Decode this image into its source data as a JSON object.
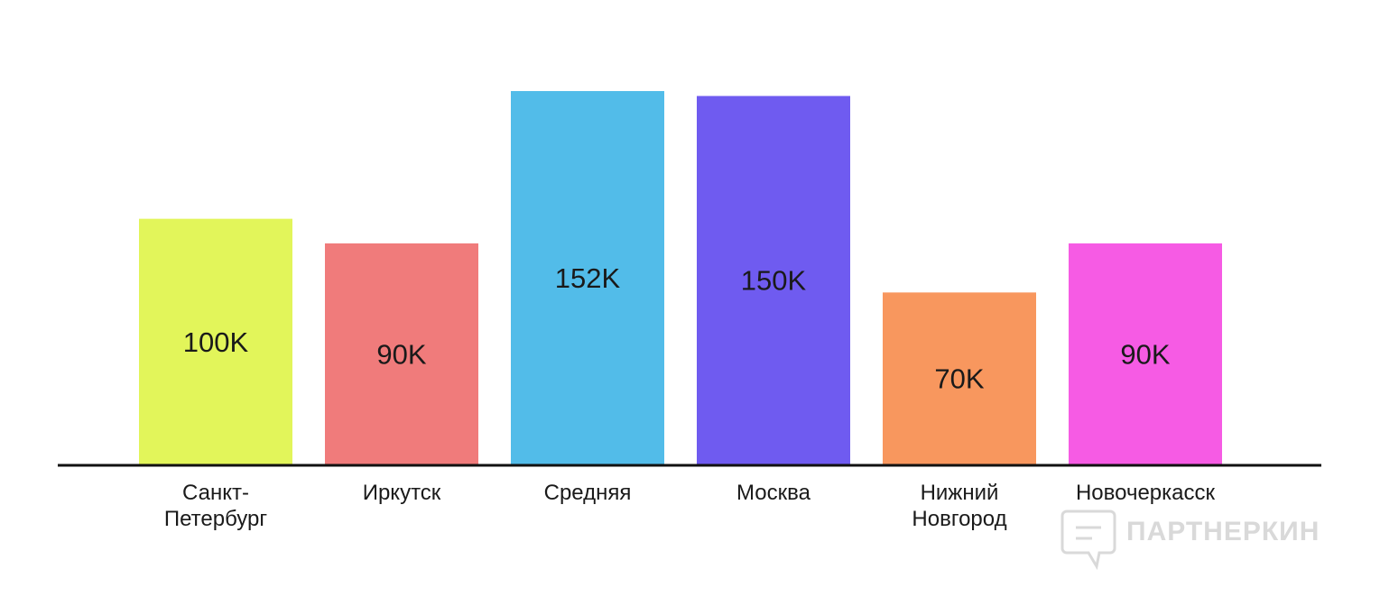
{
  "chart_data": {
    "type": "bar",
    "title": "",
    "xlabel": "",
    "ylabel": "",
    "ylim": [
      0,
      152
    ],
    "grid": false,
    "legend": "none",
    "categories": [
      [
        "Санкт-",
        "Петербург"
      ],
      [
        "Иркутск"
      ],
      [
        "Средняя"
      ],
      [
        "Москва"
      ],
      [
        "Нижний",
        "Новгород"
      ],
      [
        "Новочеркасск"
      ]
    ],
    "values": [
      100,
      90,
      152,
      150,
      70,
      90
    ],
    "value_labels": [
      "100K",
      "90K",
      "152K",
      "150K",
      "70K",
      "90K"
    ],
    "colors": [
      "#e2f55a",
      "#f07b7b",
      "#52bce9",
      "#6f5bf0",
      "#f8975e",
      "#f65be4"
    ],
    "axis_color": "#111111"
  },
  "watermark": {
    "text": "ПАРТНЕРКИН",
    "icon": "chat-bubble-logo-icon",
    "color": "#d9d9d9"
  }
}
